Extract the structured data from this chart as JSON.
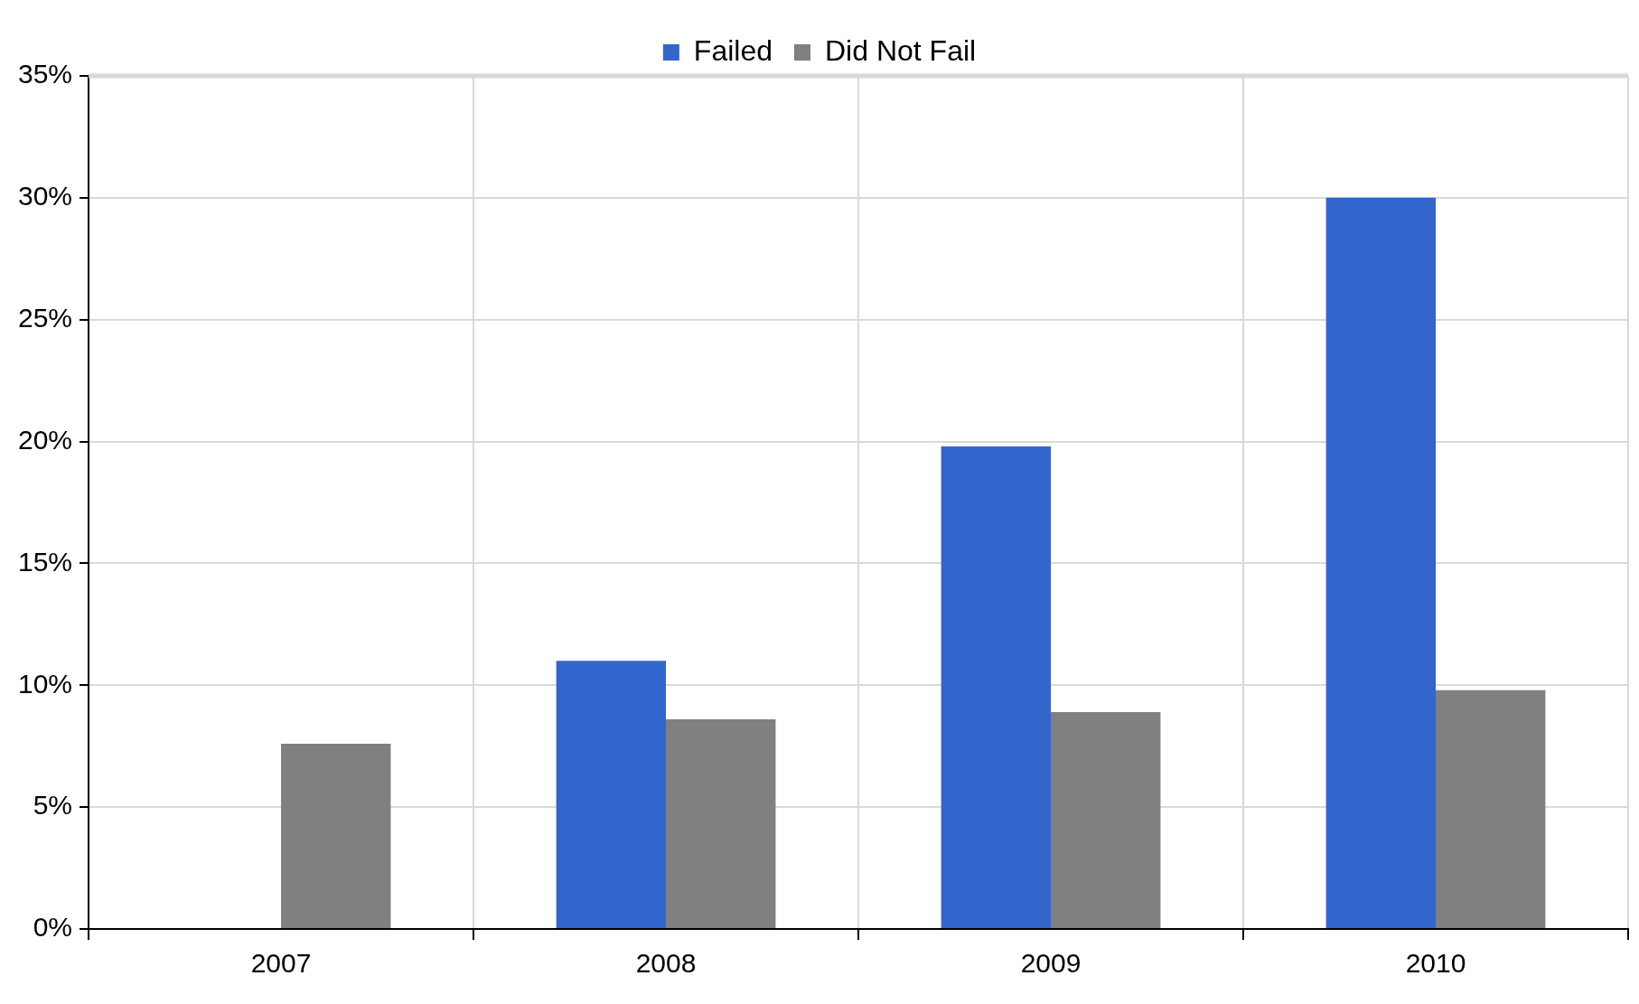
{
  "chart_data": {
    "type": "bar",
    "categories": [
      "2007",
      "2008",
      "2009",
      "2010"
    ],
    "series": [
      {
        "name": "Failed",
        "color": "#3366cc",
        "values": [
          null,
          11.0,
          19.8,
          30.0
        ]
      },
      {
        "name": "Did Not Fail",
        "color": "#808080",
        "values": [
          7.6,
          8.6,
          8.9,
          9.8
        ]
      }
    ],
    "ylim": [
      0,
      35
    ],
    "yticks": [
      {
        "value": 0,
        "label": "0%"
      },
      {
        "value": 5,
        "label": "5%"
      },
      {
        "value": 10,
        "label": "10%"
      },
      {
        "value": 15,
        "label": "15%"
      },
      {
        "value": 20,
        "label": "20%"
      },
      {
        "value": 25,
        "label": "25%"
      },
      {
        "value": 30,
        "label": "30%"
      },
      {
        "value": 35,
        "label": "35%"
      }
    ],
    "grid": true,
    "legend": "top"
  }
}
